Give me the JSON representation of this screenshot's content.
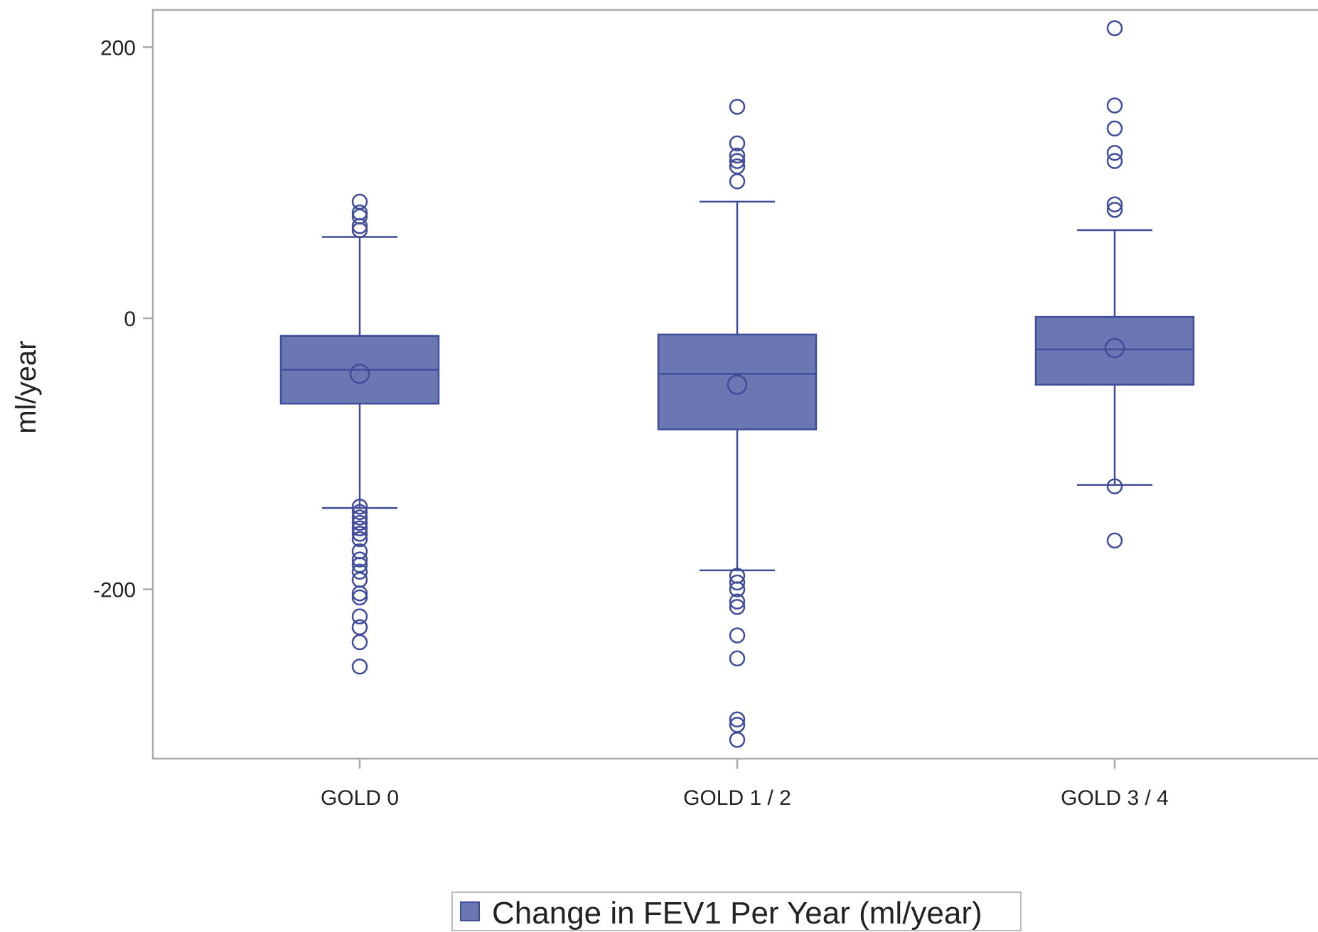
{
  "chart_data": {
    "type": "box",
    "title": "",
    "xlabel": "",
    "ylabel": "ml/year",
    "ylim": [
      -325,
      228
    ],
    "yticks": [
      200,
      0,
      -200
    ],
    "ytick_labels": [
      "200",
      "0",
      "-200"
    ],
    "grid": false,
    "legend": {
      "position": "bottom",
      "entries": [
        "Change in FEV1 Per Year (ml/year)"
      ]
    },
    "colors": {
      "box_fill": "#6b77b3",
      "line": "#3f4c99",
      "axis": "#aaaaaa"
    },
    "categories": [
      "GOLD 0",
      "GOLD 1 / 2",
      "GOLD 3 / 4"
    ],
    "series": [
      {
        "name": "Change in FEV1 Per Year (ml/year)",
        "boxes": [
          {
            "category": "GOLD 0",
            "whisker_low": -140,
            "q1": -63,
            "median": -38,
            "q3": -13,
            "whisker_high": 60,
            "mean": -41,
            "outliers": [
              86,
              78,
              75,
              68,
              65,
              -139,
              -143,
              -147,
              -151,
              -155,
              -159,
              -163,
              -172,
              -178,
              -182,
              -187,
              -193,
              -203,
              -206,
              -220,
              -228,
              -239,
              -257
            ]
          },
          {
            "category": "GOLD 1 / 2",
            "whisker_low": -186,
            "q1": -82,
            "median": -41,
            "q3": -12,
            "whisker_high": 86,
            "mean": -49,
            "outliers": [
              156,
              129,
              120,
              116,
              112,
              101,
              -190,
              -195,
              -200,
              -209,
              -213,
              -234,
              -251,
              -296,
              -300,
              -311
            ]
          },
          {
            "category": "GOLD 3 / 4",
            "whisker_low": -123,
            "q1": -49,
            "median": -23,
            "q3": 1,
            "whisker_high": 65,
            "mean": -22,
            "outliers": [
              214,
              157,
              140,
              122,
              116,
              84,
              80,
              -124,
              -164
            ]
          }
        ]
      }
    ]
  }
}
